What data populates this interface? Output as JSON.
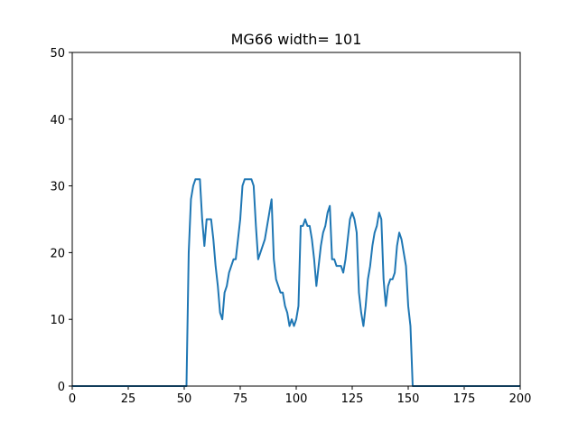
{
  "chart_data": {
    "type": "line",
    "title": "MG66 width= 101",
    "xlabel": "",
    "ylabel": "",
    "xlim": [
      0,
      200
    ],
    "ylim": [
      0,
      50
    ],
    "xticks": [
      0,
      25,
      50,
      75,
      100,
      125,
      150,
      175,
      200
    ],
    "yticks": [
      0,
      10,
      20,
      30,
      40,
      50
    ],
    "grid": false,
    "series": [
      {
        "color": "#1f77b4",
        "x": [
          0,
          25,
          51,
          52,
          53,
          54,
          55,
          56,
          57,
          58,
          59,
          60,
          61,
          62,
          63,
          64,
          65,
          66,
          67,
          68,
          69,
          70,
          71,
          72,
          73,
          74,
          75,
          76,
          77,
          78,
          79,
          80,
          81,
          82,
          83,
          84,
          85,
          86,
          87,
          88,
          89,
          90,
          91,
          92,
          93,
          94,
          95,
          96,
          97,
          98,
          99,
          100,
          101,
          102,
          103,
          104,
          105,
          106,
          107,
          108,
          109,
          110,
          111,
          112,
          113,
          114,
          115,
          116,
          117,
          118,
          119,
          120,
          121,
          122,
          123,
          124,
          125,
          126,
          127,
          128,
          129,
          130,
          131,
          132,
          133,
          134,
          135,
          136,
          137,
          138,
          139,
          140,
          141,
          142,
          143,
          144,
          145,
          146,
          147,
          148,
          149,
          150,
          151,
          152,
          175,
          200
        ],
        "y": [
          0,
          0,
          0,
          20,
          28,
          30,
          31,
          31,
          31,
          25,
          21,
          25,
          25,
          25,
          22,
          18,
          15,
          11,
          10,
          14,
          15,
          17,
          18,
          19,
          19,
          22,
          25,
          30,
          31,
          31,
          31,
          31,
          30,
          24,
          19,
          20,
          21,
          22,
          24,
          26,
          28,
          19,
          16,
          15,
          14,
          14,
          12,
          11,
          9,
          10,
          9,
          10,
          12,
          24,
          24,
          25,
          24,
          24,
          22,
          19,
          15,
          18,
          21,
          23,
          24,
          26,
          27,
          19,
          19,
          18,
          18,
          18,
          17,
          19,
          22,
          25,
          26,
          25,
          23,
          14,
          11,
          9,
          12,
          16,
          18,
          21,
          23,
          24,
          26,
          25,
          16,
          12,
          15,
          16,
          16,
          17,
          21,
          23,
          22,
          20,
          18,
          12,
          9,
          0,
          0,
          0
        ]
      }
    ]
  }
}
